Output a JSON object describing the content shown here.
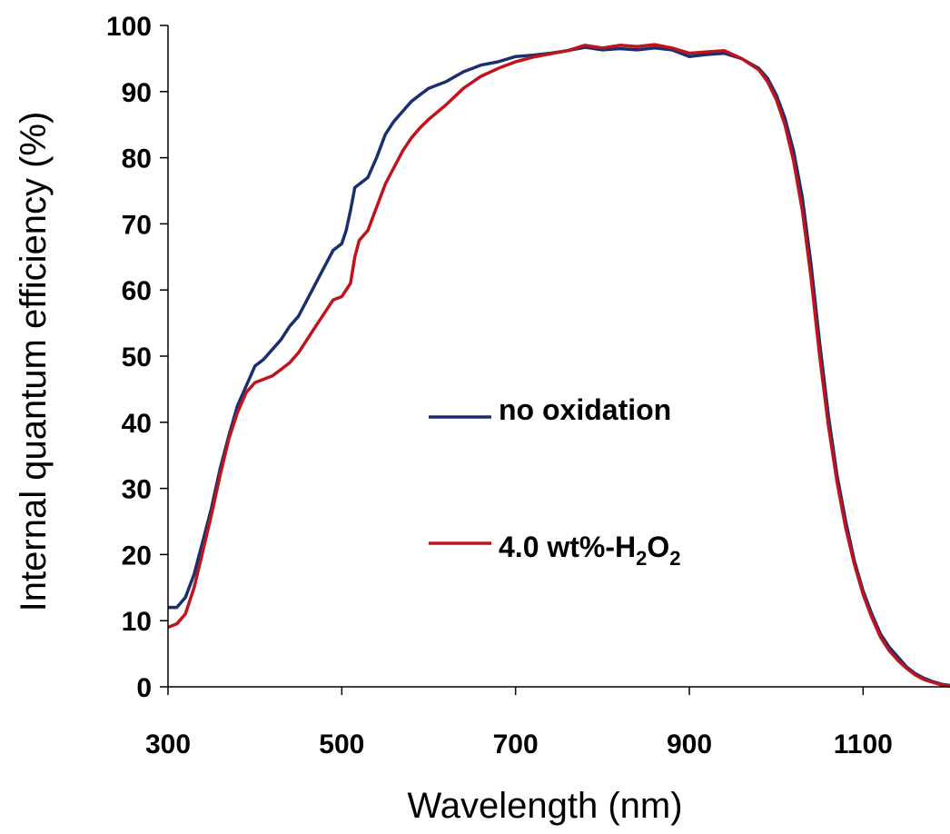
{
  "chart_data": {
    "type": "line",
    "xlabel": "Wavelength (nm)",
    "ylabel": "Internal quantum efficiency (%)",
    "xlim": [
      300,
      1200
    ],
    "ylim": [
      0,
      100
    ],
    "xticks": [
      300,
      500,
      700,
      900,
      1100
    ],
    "yticks": [
      0,
      10,
      20,
      30,
      40,
      50,
      60,
      70,
      80,
      90,
      100
    ],
    "grid": false,
    "legend_position": "center-right",
    "series": [
      {
        "name": "no oxidation",
        "color": "#1a2f6e",
        "points": [
          [
            300,
            12
          ],
          [
            310,
            12
          ],
          [
            320,
            13.5
          ],
          [
            330,
            17
          ],
          [
            340,
            22
          ],
          [
            350,
            27
          ],
          [
            360,
            33
          ],
          [
            370,
            38
          ],
          [
            380,
            42.5
          ],
          [
            390,
            45.5
          ],
          [
            400,
            48.5
          ],
          [
            410,
            49.5
          ],
          [
            420,
            51
          ],
          [
            430,
            52.5
          ],
          [
            440,
            54.5
          ],
          [
            450,
            56
          ],
          [
            460,
            58.5
          ],
          [
            470,
            61
          ],
          [
            480,
            63.5
          ],
          [
            490,
            66
          ],
          [
            500,
            67
          ],
          [
            505,
            69
          ],
          [
            510,
            72
          ],
          [
            515,
            75.5
          ],
          [
            520,
            76
          ],
          [
            530,
            77
          ],
          [
            540,
            80
          ],
          [
            550,
            83.5
          ],
          [
            560,
            85.5
          ],
          [
            570,
            87
          ],
          [
            580,
            88.5
          ],
          [
            590,
            89.5
          ],
          [
            600,
            90.5
          ],
          [
            620,
            91.5
          ],
          [
            640,
            93
          ],
          [
            660,
            94
          ],
          [
            680,
            94.5
          ],
          [
            700,
            95.3
          ],
          [
            720,
            95.5
          ],
          [
            740,
            95.8
          ],
          [
            760,
            96.2
          ],
          [
            780,
            96.7
          ],
          [
            800,
            96.3
          ],
          [
            820,
            96.5
          ],
          [
            840,
            96.3
          ],
          [
            860,
            96.6
          ],
          [
            880,
            96.3
          ],
          [
            900,
            95.3
          ],
          [
            920,
            95.6
          ],
          [
            940,
            95.8
          ],
          [
            960,
            95
          ],
          [
            980,
            93.5
          ],
          [
            990,
            92
          ],
          [
            1000,
            89.5
          ],
          [
            1010,
            86
          ],
          [
            1020,
            81
          ],
          [
            1030,
            74
          ],
          [
            1040,
            64
          ],
          [
            1050,
            52
          ],
          [
            1060,
            41
          ],
          [
            1070,
            32
          ],
          [
            1080,
            25
          ],
          [
            1090,
            19
          ],
          [
            1100,
            14.5
          ],
          [
            1110,
            11
          ],
          [
            1120,
            8
          ],
          [
            1130,
            6
          ],
          [
            1140,
            4.5
          ],
          [
            1150,
            3
          ],
          [
            1160,
            2
          ],
          [
            1170,
            1.3
          ],
          [
            1180,
            0.8
          ],
          [
            1190,
            0.4
          ],
          [
            1200,
            0.2
          ]
        ]
      },
      {
        "name": "4.0 wt%-H2O2",
        "color": "#c0141c",
        "points": [
          [
            300,
            9
          ],
          [
            310,
            9.5
          ],
          [
            320,
            11
          ],
          [
            330,
            15
          ],
          [
            340,
            20.5
          ],
          [
            350,
            26
          ],
          [
            360,
            32
          ],
          [
            370,
            37.5
          ],
          [
            380,
            41.5
          ],
          [
            390,
            44.5
          ],
          [
            400,
            46
          ],
          [
            410,
            46.5
          ],
          [
            420,
            47
          ],
          [
            430,
            48
          ],
          [
            440,
            49
          ],
          [
            450,
            50.5
          ],
          [
            460,
            52.5
          ],
          [
            470,
            54.5
          ],
          [
            480,
            56.5
          ],
          [
            490,
            58.5
          ],
          [
            500,
            59
          ],
          [
            510,
            61
          ],
          [
            515,
            65
          ],
          [
            520,
            67.5
          ],
          [
            530,
            69
          ],
          [
            540,
            72.5
          ],
          [
            550,
            76
          ],
          [
            560,
            78.5
          ],
          [
            570,
            81
          ],
          [
            580,
            83
          ],
          [
            590,
            84.5
          ],
          [
            600,
            85.8
          ],
          [
            620,
            88
          ],
          [
            640,
            90.5
          ],
          [
            660,
            92.3
          ],
          [
            680,
            93.5
          ],
          [
            700,
            94.5
          ],
          [
            720,
            95.2
          ],
          [
            740,
            95.7
          ],
          [
            760,
            96.2
          ],
          [
            780,
            97
          ],
          [
            800,
            96.6
          ],
          [
            820,
            97
          ],
          [
            840,
            96.8
          ],
          [
            860,
            97.1
          ],
          [
            880,
            96.6
          ],
          [
            900,
            95.8
          ],
          [
            920,
            96
          ],
          [
            940,
            96.2
          ],
          [
            960,
            95
          ],
          [
            980,
            93.3
          ],
          [
            990,
            91.5
          ],
          [
            1000,
            88.8
          ],
          [
            1010,
            85
          ],
          [
            1020,
            79.5
          ],
          [
            1030,
            72
          ],
          [
            1040,
            62
          ],
          [
            1050,
            50
          ],
          [
            1060,
            39.5
          ],
          [
            1070,
            31
          ],
          [
            1080,
            24
          ],
          [
            1090,
            18.5
          ],
          [
            1100,
            14
          ],
          [
            1110,
            10.5
          ],
          [
            1120,
            7.5
          ],
          [
            1130,
            5.5
          ],
          [
            1140,
            4
          ],
          [
            1150,
            2.8
          ],
          [
            1160,
            1.8
          ],
          [
            1170,
            1.1
          ],
          [
            1180,
            0.7
          ],
          [
            1190,
            0.3
          ],
          [
            1200,
            0.1
          ]
        ]
      }
    ],
    "legend": {
      "entries": [
        {
          "label": "no oxidation",
          "color": "#1a2f6e"
        },
        {
          "label_main": "4.0 wt%-H",
          "sub1": "2",
          "mid": "O",
          "sub2": "2",
          "color": "#c0141c"
        }
      ]
    }
  }
}
